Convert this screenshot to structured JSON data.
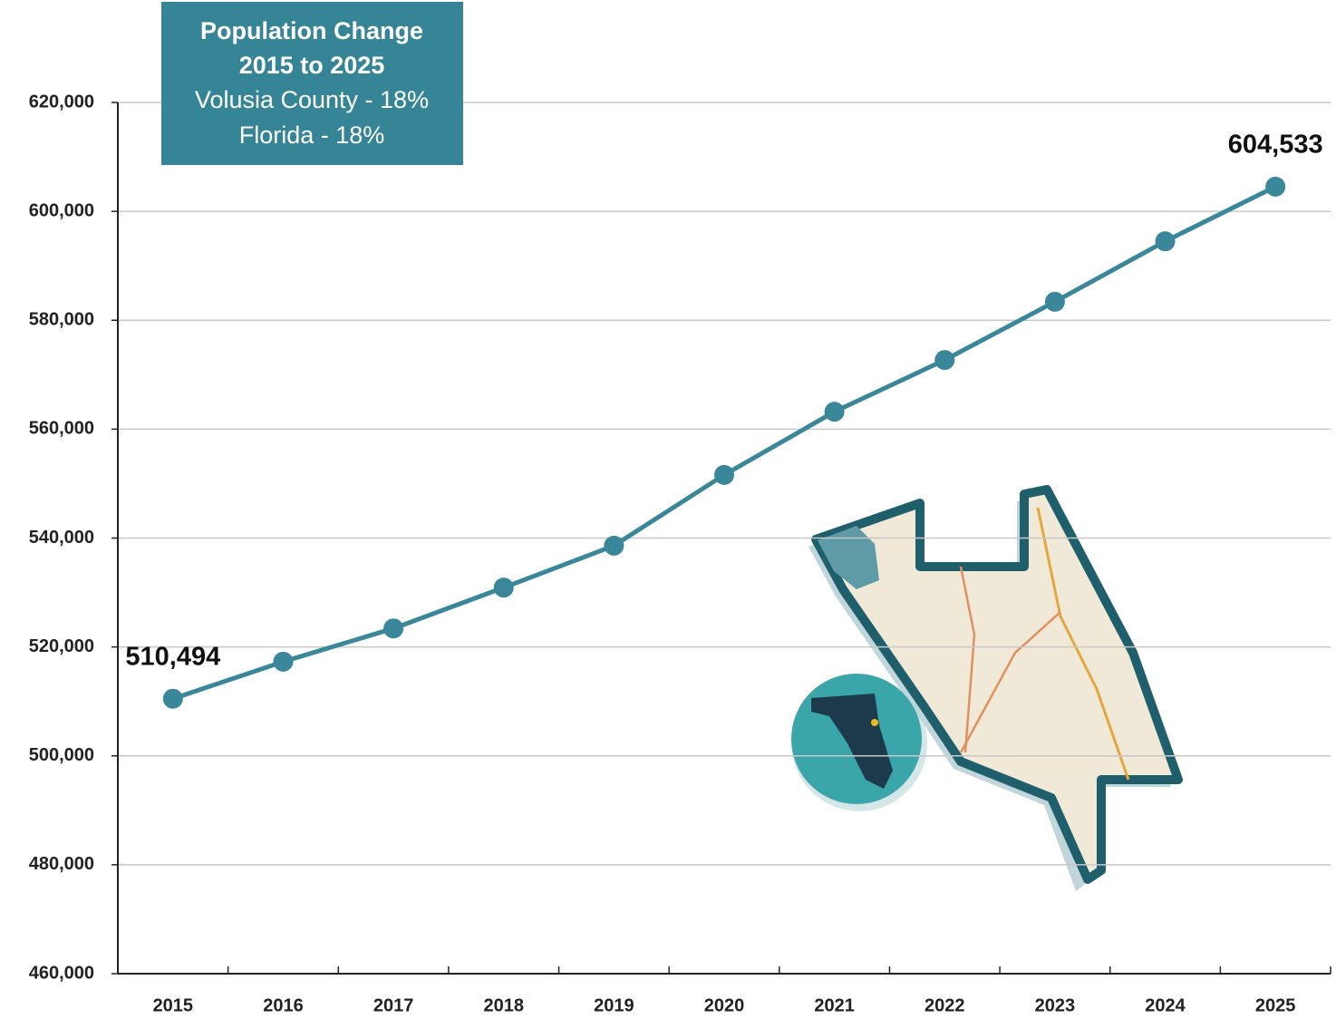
{
  "chart_data": {
    "type": "line",
    "annotation": {
      "title": [
        "Population Change",
        "2015 to 2025"
      ],
      "lines": [
        "Volusia County - 18%",
        "Florida - 18%"
      ]
    },
    "categories": [
      "2015",
      "2016",
      "2017",
      "2018",
      "2019",
      "2020",
      "2021",
      "2022",
      "2023",
      "2024",
      "2025"
    ],
    "series": [
      {
        "color": "#3a879a",
        "values": [
          510494,
          517300,
          523400,
          530900,
          538600,
          551600,
          563200,
          572700,
          583400,
          594500,
          604533
        ],
        "value_labels": [
          "510,494",
          null,
          null,
          null,
          null,
          null,
          null,
          null,
          null,
          null,
          "604,533"
        ]
      }
    ],
    "ylim": [
      460000,
      620000
    ],
    "yticks": [
      {
        "value": 460000,
        "label": "460,000"
      },
      {
        "value": 480000,
        "label": "480,000"
      },
      {
        "value": 500000,
        "label": "500,000"
      },
      {
        "value": 520000,
        "label": "520,000"
      },
      {
        "value": 540000,
        "label": "540,000"
      },
      {
        "value": 560000,
        "label": "560,000"
      },
      {
        "value": 580000,
        "label": "580,000"
      },
      {
        "value": 600000,
        "label": "600,000"
      },
      {
        "value": 620000,
        "label": "620,000"
      }
    ],
    "grid": true
  }
}
